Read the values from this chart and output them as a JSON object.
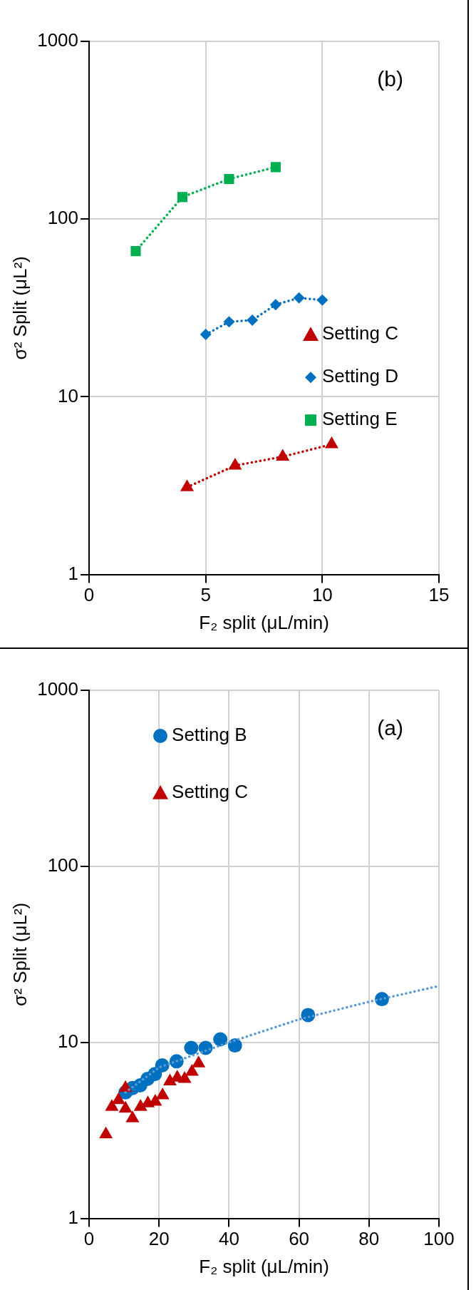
{
  "chart_data": [
    {
      "type": "scatter",
      "xlabel": "F₂ split (μL/min)",
      "ylabel": "σ² Split (μL²)",
      "annotations": [
        "(b)"
      ],
      "xlim": [
        0,
        15
      ],
      "xticks": [
        0,
        5,
        10,
        15
      ],
      "ylim": [
        1,
        1000
      ],
      "yticks": [
        1,
        10,
        100,
        1000
      ],
      "log": "y",
      "grid": true,
      "legend": "right",
      "series": [
        {
          "name": "Setting C",
          "type": "line",
          "color": "#c00000",
          "marker": "triangle",
          "line_style": "dotted",
          "x": [
            4.2,
            6.26,
            8.3,
            10.4
          ],
          "values": [
            3.1,
            4.1,
            4.6,
            5.4
          ]
        },
        {
          "name": "Setting D",
          "type": "line",
          "color": "#0070c0",
          "marker": "diamond",
          "line_style": "dotted",
          "x": [
            5,
            6,
            7,
            8,
            9,
            10
          ],
          "values": [
            22.4,
            26.4,
            27,
            33,
            36,
            35
          ]
        },
        {
          "name": "Setting E",
          "type": "line",
          "color": "#00b050",
          "marker": "square",
          "line_style": "dotted",
          "x": [
            2,
            4,
            6,
            8
          ],
          "values": [
            66,
            133,
            168,
            196
          ]
        }
      ]
    },
    {
      "type": "scatter",
      "xlabel": "F₂ split (μL/min)",
      "ylabel": "σ² Split (μL²)",
      "annotations": [
        "(a)"
      ],
      "xlim": [
        0,
        100
      ],
      "xticks": [
        0,
        20,
        40,
        60,
        80,
        100
      ],
      "ylim": [
        1,
        1000
      ],
      "yticks": [
        1,
        10,
        100,
        1000
      ],
      "log": "y",
      "grid": true,
      "legend": "top left",
      "series": [
        {
          "name": "Setting B",
          "type": "scatter",
          "color": "#0070c0",
          "marker": "circle",
          "x": [
            10.4,
            12.4,
            14.6,
            16.7,
            18.8,
            20.9,
            25.0,
            29.2,
            33.3,
            37.5,
            41.7,
            62.6,
            83.7
          ],
          "values": [
            5.2,
            5.5,
            5.7,
            6.2,
            6.6,
            7.4,
            7.8,
            9.3,
            9.3,
            10.4,
            9.6,
            14.3,
            17.6
          ]
        },
        {
          "name": "Setting C",
          "type": "scatter",
          "color": "#c00000",
          "marker": "triangle",
          "x": [
            4.8,
            6.5,
            8.4,
            10.4,
            10.4,
            12.4,
            14.7,
            16.8,
            18.9,
            21.0,
            23.1,
            25.2,
            27.3,
            29.4,
            31.3
          ],
          "values": [
            3.0,
            4.3,
            4.7,
            4.2,
            5.5,
            3.7,
            4.3,
            4.5,
            4.6,
            5.0,
            6.0,
            6.3,
            6.2,
            6.8,
            7.6
          ]
        },
        {
          "type": "line",
          "color": "#5b9bd5",
          "marker": "none",
          "line_style": "dotted",
          "x": [
            10.4,
            20,
            40,
            60,
            80,
            100
          ],
          "values": [
            5.2,
            7.2,
            10,
            13.5,
            17,
            20.9
          ]
        }
      ]
    }
  ]
}
